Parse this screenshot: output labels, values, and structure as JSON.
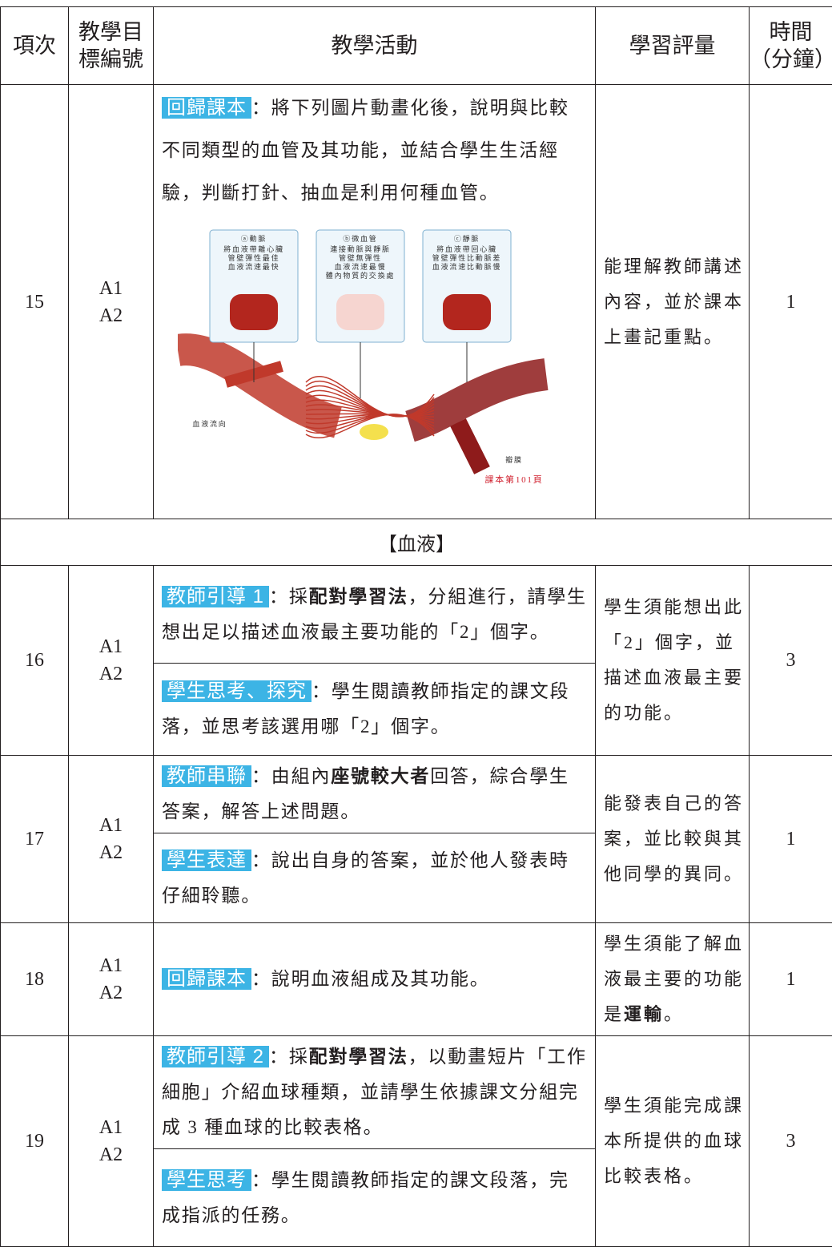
{
  "table": {
    "header": [
      [
        "項次"
      ],
      [
        "教學目",
        "標編號"
      ],
      [
        "教學活動"
      ],
      [
        "學習評量"
      ],
      [
        "時間",
        "（分鐘）"
      ]
    ],
    "rows": [
      {
        "item": "15",
        "goals": [
          "A1",
          "A2"
        ],
        "activities": [
          {
            "tag": "回歸課本",
            "text": [
              "：將下列圖片動畫化後，說明與比較不同類型的血管及其功能，並結合學生生活經驗，判斷打針、抽血是利用何種血管。"
            ],
            "figure": {
              "panels": [
                {
                  "label": "ⓐ動脈",
                  "lines": [
                    "將血液帶離心臟",
                    "管壁彈性最佳",
                    "血液流速最快"
                  ]
                },
                {
                  "label": "ⓑ微血管",
                  "lines": [
                    "連接動脈與靜脈",
                    "管壁無彈性",
                    "血液流速最慢",
                    "體內物質的交換處"
                  ]
                },
                {
                  "label": "ⓒ靜脈",
                  "lines": [
                    "將血液帶回心臟",
                    "管壁彈性比動脈差",
                    "血液流速比動脈慢"
                  ]
                }
              ],
              "flow": "血液流向",
              "valve": "瓣膜",
              "page": "課本第101頁"
            }
          }
        ],
        "assessment": [
          "能理解教師講述內容，並於課本上畫記重點。"
        ],
        "time": "1"
      },
      {
        "section": "【血液】"
      },
      {
        "item": "16",
        "goals": [
          "A1",
          "A2"
        ],
        "activities": [
          {
            "tag": "教師引導 1",
            "text": [
              "：採",
              {
                "text": "配對學習法",
                "bold": true
              },
              "，分組進行，請學生想出足以描述血液最主要功能的「2」個字。"
            ]
          },
          {
            "tag": "學生思考、探究",
            "text": [
              "：學生閱讀教師指定的課文段落，並思考該選用哪「2」個字。"
            ]
          }
        ],
        "assessment": [
          "學生須能想出此「2」個字，並描述血液最主要的功能。"
        ],
        "time": "3"
      },
      {
        "item": "17",
        "goals": [
          "A1",
          "A2"
        ],
        "activities": [
          {
            "tag": "教師串聯",
            "text": [
              "：由組內",
              {
                "text": "座號較大者",
                "bold": true
              },
              "回答，綜合學生答案，解答上述問題。"
            ]
          },
          {
            "tag": "學生表達",
            "text": [
              "：說出自身的答案，並於他人發表時仔細聆聽。"
            ]
          }
        ],
        "assessment": [
          "能發表自己的答案，並比較與其他同學的異同。"
        ],
        "time": "1"
      },
      {
        "item": "18",
        "goals": [
          "A1",
          "A2"
        ],
        "activities": [
          {
            "tag": "回歸課本",
            "text": [
              "：說明血液組成及其功能。"
            ]
          }
        ],
        "assessment": [
          "學生須能了解血液最主要的功能是",
          {
            "text": "運輸",
            "bold": true
          },
          "。"
        ],
        "time": "1"
      },
      {
        "item": "19",
        "goals": [
          "A1",
          "A2"
        ],
        "activities": [
          {
            "tag": "教師引導 2",
            "text": [
              "：採",
              {
                "text": "配對學習法",
                "bold": true
              },
              "，以動畫短片「工作細胞」介紹血球種類，並請學生依據課文分組完成 3 種血球的比較表格。"
            ]
          },
          {
            "tag": "學生思考",
            "text": [
              "：學生閱讀教師指定的課文段落，完成指派的任務。"
            ]
          }
        ],
        "assessment": [
          "學生須能完成課本所提供的血球比較表格。"
        ],
        "time": "3"
      }
    ]
  }
}
